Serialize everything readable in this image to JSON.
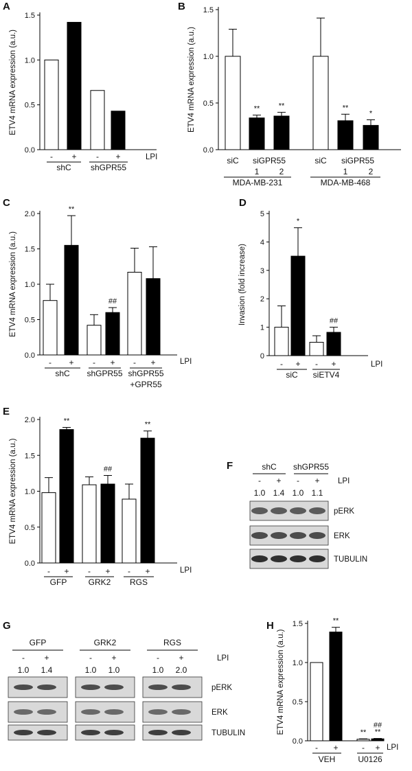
{
  "panels": {
    "A": {
      "letter": "A"
    },
    "B": {
      "letter": "B"
    },
    "C": {
      "letter": "C"
    },
    "D": {
      "letter": "D"
    },
    "E": {
      "letter": "E"
    },
    "F": {
      "letter": "F"
    },
    "G": {
      "letter": "G"
    },
    "H": {
      "letter": "H"
    }
  },
  "chart_data": [
    {
      "id": "A",
      "type": "bar",
      "ylabel": "ETV4 mRNA expression (a.u.)",
      "ylim": [
        0,
        1.5
      ],
      "yticks": [
        "0.0",
        "0.5",
        "1.0",
        "1.5"
      ],
      "bars": [
        {
          "value": 1.0,
          "fill": "white"
        },
        {
          "value": 1.42,
          "fill": "black"
        },
        {
          "value": 0.66,
          "fill": "white"
        },
        {
          "value": 0.43,
          "fill": "black"
        }
      ],
      "signs": [
        "-",
        "+",
        "-",
        "+"
      ],
      "group_labels": [
        "shC",
        "shGPR55"
      ],
      "lpi_label": "LPI"
    },
    {
      "id": "B",
      "type": "bar",
      "ylabel": "ETV4 mRNA expression (a.u.)",
      "ylim": [
        0,
        1.5
      ],
      "yticks": [
        "0.0",
        "0.5",
        "1.0",
        "1.5"
      ],
      "bars": [
        {
          "value": 1.0,
          "err": 0.29,
          "fill": "white",
          "star": ""
        },
        {
          "value": 0.34,
          "err": 0.03,
          "fill": "black",
          "star": "**"
        },
        {
          "value": 0.36,
          "err": 0.04,
          "fill": "black",
          "star": "**"
        },
        {
          "value": 1.0,
          "err": 0.41,
          "fill": "white",
          "star": ""
        },
        {
          "value": 0.31,
          "err": 0.07,
          "fill": "black",
          "star": "**"
        },
        {
          "value": 0.26,
          "err": 0.06,
          "fill": "black",
          "star": "*"
        }
      ],
      "bar_labels": [
        "siC",
        "siGPR55",
        "",
        "siC",
        "siGPR55",
        ""
      ],
      "bar_sub_labels": [
        "",
        "1",
        "2",
        "",
        "1",
        "2"
      ],
      "group_labels": [
        "MDA-MB-231",
        "MDA-MB-468"
      ]
    },
    {
      "id": "C",
      "type": "bar",
      "ylabel": "ETV4 mRNA expression (a.u.)",
      "ylim": [
        0,
        2.0
      ],
      "yticks": [
        "0.0",
        "0.5",
        "1.0",
        "1.5",
        "2.0"
      ],
      "bars": [
        {
          "value": 0.77,
          "err": 0.23,
          "fill": "white",
          "star": ""
        },
        {
          "value": 1.55,
          "err": 0.42,
          "fill": "black",
          "star": "**"
        },
        {
          "value": 0.42,
          "err": 0.15,
          "fill": "white",
          "star": ""
        },
        {
          "value": 0.6,
          "err": 0.07,
          "fill": "black",
          "star": "##"
        },
        {
          "value": 1.17,
          "err": 0.34,
          "fill": "white",
          "star": ""
        },
        {
          "value": 1.08,
          "err": 0.45,
          "fill": "black",
          "star": ""
        }
      ],
      "signs": [
        "-",
        "+",
        "-",
        "+",
        "-",
        "+"
      ],
      "group_labels": [
        "shC",
        "shGPR55",
        "shGPR55"
      ],
      "group_sub_labels": [
        "",
        "",
        "+GPR55"
      ],
      "lpi_label": "LPI"
    },
    {
      "id": "D",
      "type": "bar",
      "ylabel": "Invasion (fold increase)",
      "ylim": [
        0,
        5
      ],
      "yticks": [
        "0",
        "1",
        "2",
        "3",
        "4",
        "5"
      ],
      "bars": [
        {
          "value": 1.0,
          "err": 0.75,
          "fill": "white",
          "star": ""
        },
        {
          "value": 3.5,
          "err": 1.0,
          "fill": "black",
          "star": "*"
        },
        {
          "value": 0.47,
          "err": 0.23,
          "fill": "white",
          "star": ""
        },
        {
          "value": 0.82,
          "err": 0.18,
          "fill": "black",
          "star": "##"
        }
      ],
      "signs": [
        "-",
        "+",
        "-",
        "+"
      ],
      "group_labels": [
        "siC",
        "siETV4"
      ],
      "lpi_label": "LPI"
    },
    {
      "id": "E",
      "type": "bar",
      "ylabel": "ETV4 mRNA expression (a.u.)",
      "ylim": [
        0,
        2.0
      ],
      "yticks": [
        "0.0",
        "0.5",
        "1.0",
        "1.5",
        "2.0"
      ],
      "bars": [
        {
          "value": 0.98,
          "err": 0.21,
          "fill": "white",
          "star": ""
        },
        {
          "value": 1.86,
          "err": 0.03,
          "fill": "black",
          "star": "**"
        },
        {
          "value": 1.09,
          "err": 0.11,
          "fill": "white",
          "star": ""
        },
        {
          "value": 1.1,
          "err": 0.12,
          "fill": "black",
          "star": "##"
        },
        {
          "value": 0.89,
          "err": 0.21,
          "fill": "white",
          "star": ""
        },
        {
          "value": 1.74,
          "err": 0.1,
          "fill": "black",
          "star": "**"
        }
      ],
      "signs": [
        "-",
        "+",
        "-",
        "+",
        "-",
        "+"
      ],
      "group_labels": [
        "GFP",
        "GRK2",
        "RGS"
      ],
      "lpi_label": "LPI"
    },
    {
      "id": "H",
      "type": "bar",
      "ylabel": "ETV4 mRNA expression (a.u.)",
      "ylim": [
        0,
        1.5
      ],
      "yticks": [
        "0.0",
        "0.5",
        "1.0",
        "1.5"
      ],
      "bars": [
        {
          "value": 1.0,
          "err": 0,
          "fill": "white",
          "star": ""
        },
        {
          "value": 1.39,
          "err": 0.06,
          "fill": "black",
          "star": "**"
        },
        {
          "value": 0.02,
          "err": 0.005,
          "fill": "white",
          "star": "**"
        },
        {
          "value": 0.025,
          "err": 0.005,
          "fill": "black",
          "star": "##\n**"
        }
      ],
      "signs": [
        "-",
        "+",
        "-",
        "+"
      ],
      "group_labels": [
        "VEH",
        "U0126"
      ],
      "lpi_label": "LPI"
    }
  ],
  "blot_F": {
    "groups": [
      "shC",
      "shGPR55"
    ],
    "lpi_label": "LPI",
    "signs": [
      "-",
      "+",
      "-",
      "+"
    ],
    "quant": [
      "1.0",
      "1.4",
      "1.0",
      "1.1"
    ],
    "rows": [
      "pERK",
      "ERK",
      "TUBULIN"
    ]
  },
  "blot_G": {
    "groups": [
      "GFP",
      "GRK2",
      "RGS"
    ],
    "lpi_label": "LPI",
    "signs": [
      "-",
      "+",
      "-",
      "+",
      "-",
      "+"
    ],
    "quant": [
      "1.0",
      "1.4",
      "1.0",
      "1.0",
      "1.0",
      "2.0"
    ],
    "rows": [
      "pERK",
      "ERK",
      "TUBULIN"
    ]
  }
}
